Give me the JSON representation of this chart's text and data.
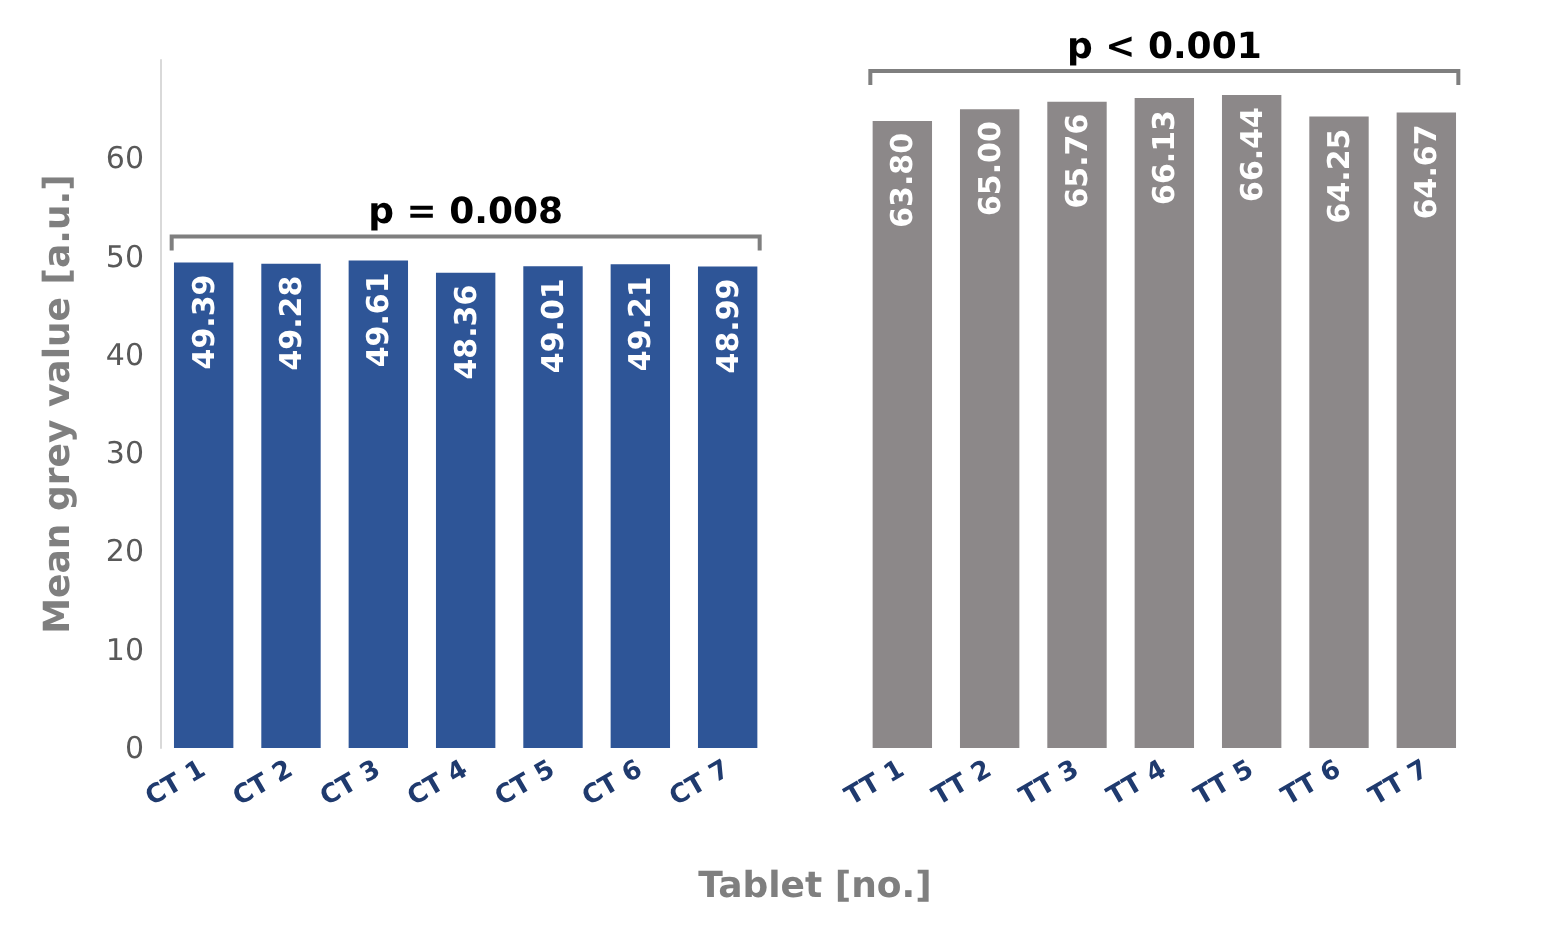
{
  "chart_data": {
    "type": "bar",
    "xlabel": "Tablet [no.]",
    "ylabel": "Mean grey value [a.u.]",
    "categories": [
      "CT 1",
      "CT 2",
      "CT 3",
      "CT 4",
      "CT 5",
      "CT 6",
      "CT 7",
      null,
      "TT 1",
      "TT 2",
      "TT 3",
      "TT 4",
      "TT 5",
      "TT 6",
      "TT 7"
    ],
    "series": [
      {
        "color": "#2e5597",
        "values": [
          49.39,
          49.28,
          49.61,
          48.36,
          49.01,
          49.21,
          48.99,
          null,
          null,
          null,
          null,
          null,
          null,
          null,
          null
        ],
        "value_labels": [
          "49.39",
          "49.28",
          "49.61",
          "48.36",
          "49.01",
          "49.21",
          "48.99",
          null,
          null,
          null,
          null,
          null,
          null,
          null,
          null
        ]
      },
      {
        "color": "#8c8889",
        "values": [
          null,
          null,
          null,
          null,
          null,
          null,
          null,
          null,
          63.8,
          65.0,
          65.76,
          66.13,
          66.44,
          64.25,
          64.67
        ],
        "value_labels": [
          null,
          null,
          null,
          null,
          null,
          null,
          null,
          null,
          "63.80",
          "65.00",
          "65.76",
          "66.13",
          "66.44",
          "64.25",
          "64.67"
        ]
      }
    ],
    "ylim": [
      0,
      70
    ],
    "yticks": [
      0,
      10,
      20,
      30,
      40,
      50,
      60
    ],
    "grid": false,
    "annotations": [
      "p = 0.008",
      "p < 0.001"
    ]
  }
}
